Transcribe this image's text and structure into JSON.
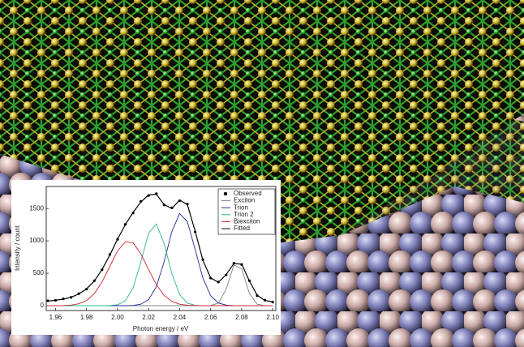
{
  "chart_data": {
    "type": "line",
    "xlabel": "Photon energy / eV",
    "ylabel": "Intensity / count",
    "xlim": [
      1.954,
      2.102
    ],
    "ylim": [
      -75,
      1840
    ],
    "xticks": [
      1.96,
      1.98,
      {
        "value": 2,
        "label": "2.00"
      },
      2.02,
      2.04,
      2.06,
      2.08,
      {
        "value": 2.1,
        "label": "2.10"
      }
    ],
    "yticks": [
      0,
      500,
      1000,
      1500
    ],
    "legend": "upper right",
    "x": [
      1.955,
      1.96,
      1.965,
      1.97,
      1.975,
      1.98,
      1.985,
      1.99,
      1.995,
      2.0,
      2.005,
      2.01,
      2.015,
      2.02,
      2.025,
      2.03,
      2.035,
      2.04,
      2.045,
      2.05,
      2.055,
      2.06,
      2.065,
      2.07,
      2.075,
      2.08,
      2.085,
      2.09,
      2.095,
      2.1
    ],
    "series": [
      {
        "name": "Observed",
        "color": "#000000",
        "marker": "dot",
        "values": [
          75,
          82,
          105,
          128,
          185,
          255,
          385,
          555,
          790,
          1025,
          1255,
          1430,
          1610,
          1700,
          1730,
          1555,
          1510,
          1620,
          1570,
          1140,
          710,
          425,
          365,
          475,
          655,
          635,
          385,
          155,
          85,
          55
        ]
      },
      {
        "name": "Exciton",
        "color": "#808080",
        "values": [
          0,
          0,
          0,
          0,
          0,
          0,
          0,
          0,
          0,
          0,
          0,
          0,
          0,
          0,
          0,
          0,
          0,
          0,
          0,
          0,
          0,
          2,
          38,
          255,
          628,
          568,
          189,
          23,
          1,
          0
        ]
      },
      {
        "name": "Trion",
        "color": "#1f2a9c",
        "values": [
          0,
          0,
          0,
          0,
          0,
          0,
          0,
          0,
          0,
          0,
          0,
          4,
          22,
          94,
          294,
          678,
          1145,
          1421,
          1295,
          868,
          426,
          154,
          41,
          8,
          1,
          0,
          0,
          0,
          0,
          0
        ]
      },
      {
        "name": "Trion 2",
        "color": "#2bb58a",
        "values": [
          0,
          0,
          0,
          0,
          0,
          0,
          0,
          0,
          2,
          14,
          76,
          275,
          674,
          1120,
          1260,
          959,
          494,
          172,
          40,
          6,
          1,
          0,
          0,
          0,
          0,
          0,
          0,
          0,
          0,
          0
        ]
      },
      {
        "name": "Biexciton",
        "color": "#d2232a",
        "values": [
          0,
          0,
          2,
          9,
          29,
          80,
          186,
          367,
          607,
          844,
          986,
          969,
          801,
          556,
          325,
          159,
          66,
          23,
          7,
          2,
          0,
          0,
          0,
          0,
          0,
          0,
          0,
          0,
          0,
          0
        ]
      },
      {
        "name": "Fitted",
        "color": "#000000",
        "values": [
          70,
          85,
          100,
          130,
          180,
          260,
          380,
          560,
          780,
          1030,
          1250,
          1440,
          1600,
          1710,
          1720,
          1560,
          1500,
          1630,
          1560,
          1150,
          700,
          430,
          360,
          480,
          650,
          640,
          380,
          160,
          80,
          60
        ]
      }
    ]
  }
}
